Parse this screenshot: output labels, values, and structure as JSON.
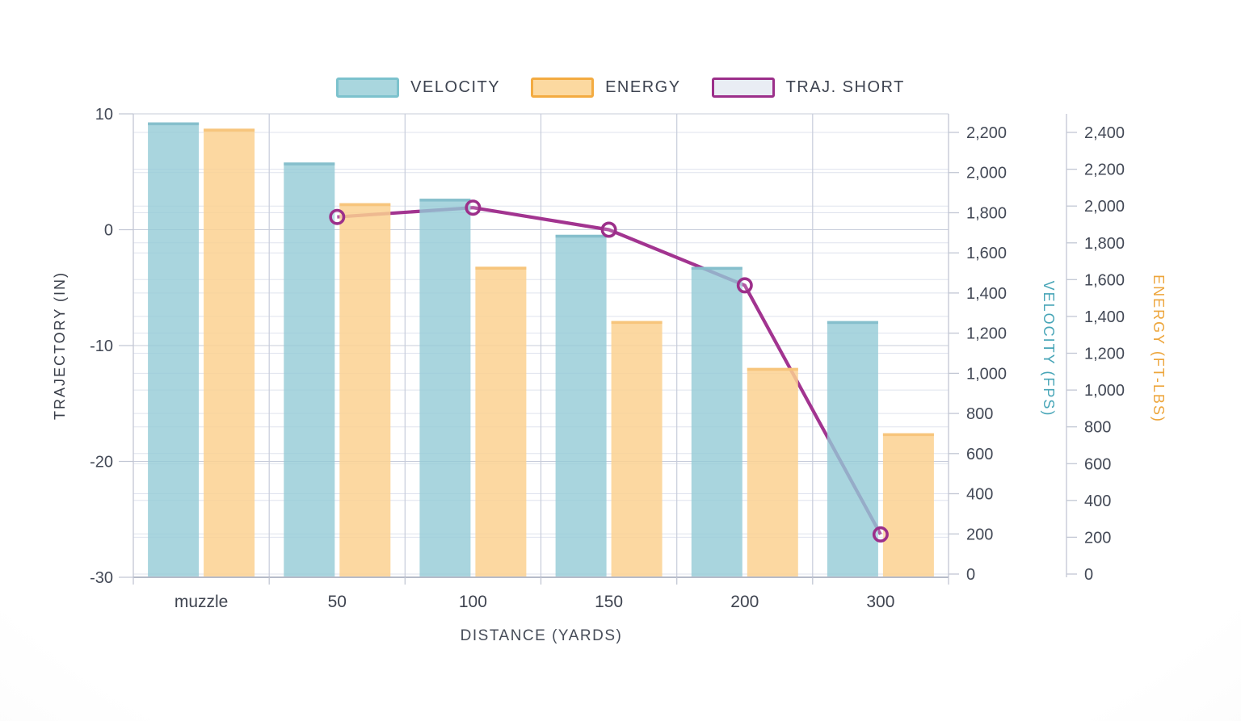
{
  "legend": [
    {
      "label": "VELOCITY",
      "fill": "#a9d6de",
      "border": "#7cc2cd"
    },
    {
      "label": "ENERGY",
      "fill": "#fcd9a0",
      "border": "#f3ab41"
    },
    {
      "label": "TRAJ. SHORT",
      "fill": "#e9edf4",
      "border": "#9c2f8a"
    }
  ],
  "chart_data": {
    "type": "combo-bar-line",
    "categories": [
      "muzzle",
      "50",
      "100",
      "150",
      "200",
      "300"
    ],
    "xlabel": "DISTANCE (YARDS)",
    "series": [
      {
        "name": "VELOCITY",
        "type": "bar",
        "axis": "velocity",
        "values": [
          2250,
          2050,
          1870,
          1690,
          1530,
          1260
        ]
      },
      {
        "name": "ENERGY",
        "type": "bar",
        "axis": "energy",
        "values": [
          2420,
          2015,
          1670,
          1375,
          1120,
          765
        ]
      },
      {
        "name": "TRAJ. SHORT",
        "type": "line",
        "axis": "trajectory",
        "values": [
          null,
          1.1,
          1.9,
          0,
          -4.8,
          -26.3
        ]
      }
    ],
    "axes": {
      "trajectory": {
        "label": "TRAJECTORY (IN)",
        "min": -30,
        "max": 10,
        "tick_step": 10,
        "side": "left",
        "title_color": "#3a3f4a"
      },
      "velocity": {
        "label": "VELOCITY (FPS)",
        "min": 0,
        "max": 2200,
        "tick_step": 200,
        "side": "right",
        "title_color": "#47a5b7"
      },
      "energy": {
        "label": "ENERGY (FT-LBS)",
        "min": 0,
        "max": 2400,
        "tick_step": 200,
        "side": "right",
        "title_color": "#eda53b"
      }
    },
    "grid": true,
    "legend_position": "top"
  },
  "colors": {
    "velocity_bar_fill": "#93cad6",
    "velocity_bar_cap": "#82bcca",
    "energy_bar_fill": "#fbd191",
    "energy_bar_cap": "#f6c378",
    "trajectory_line": "#a23490",
    "trajectory_marker": "#9c2f8a",
    "grid_light": "#dfe3ee",
    "grid_medium": "#c9cedcc",
    "grid_traj": "#c7ccda",
    "axis_line": "#c2c7d4",
    "bottom_axis": "#b6bbc9",
    "tick_text": "#434956"
  }
}
